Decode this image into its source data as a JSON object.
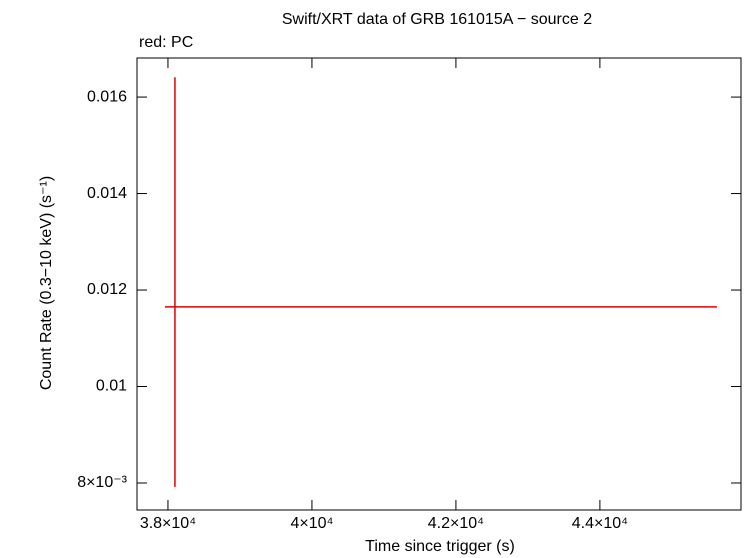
{
  "chart_data": {
    "type": "errorbar",
    "title": "Swift/XRT data of GRB 161015A − source 2",
    "subtitle": "red: PC",
    "x_label": "Time since trigger (s)",
    "y_label": "Count Rate (0.3−10 keV) (s⁻¹)",
    "xlim": [
      37570,
      45960
    ],
    "ylim": [
      0.00744,
      0.01681
    ],
    "xticks": [
      {
        "value": 38000,
        "label": "3.8×10⁴"
      },
      {
        "value": 40000,
        "label": "4×10⁴"
      },
      {
        "value": 42000,
        "label": "4.2×10⁴"
      },
      {
        "value": 44000,
        "label": "4.4×10⁴"
      }
    ],
    "yticks": [
      {
        "value": 0.008,
        "label": "8×10⁻³"
      },
      0.01,
      0.012,
      0.014,
      0.016
    ],
    "series": [
      {
        "name": "PC",
        "color": "#dd0000",
        "x": [
          38097
        ],
        "xerr_minus": [
          139
        ],
        "xerr_plus": [
          7528
        ],
        "values": [
          0.01165
        ],
        "yerr_minus": [
          0.00373
        ],
        "yerr_plus": [
          0.00476
        ]
      }
    ]
  }
}
